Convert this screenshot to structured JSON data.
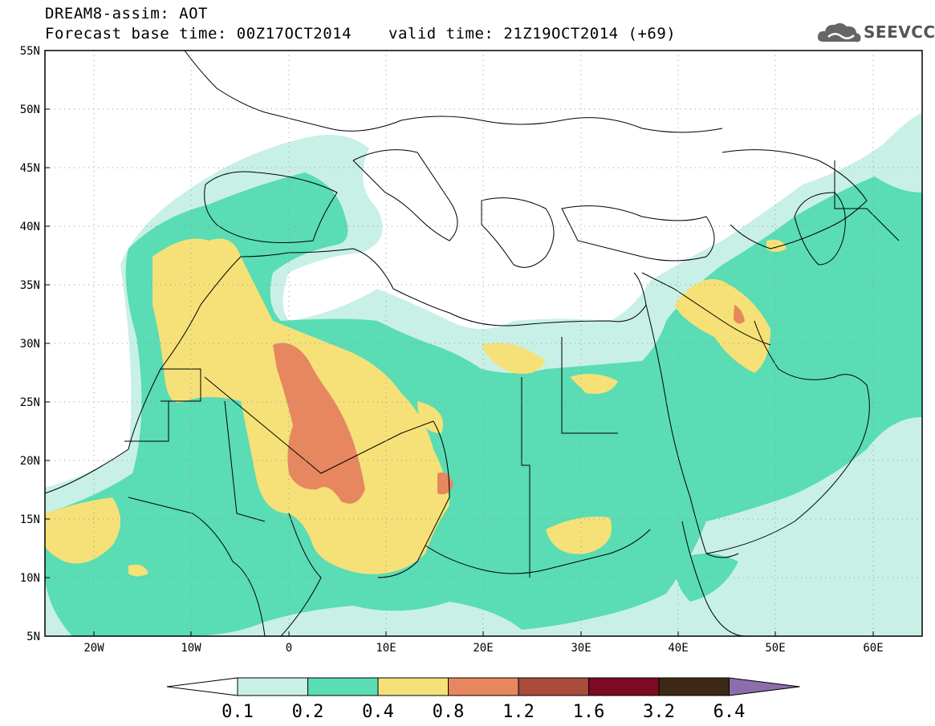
{
  "header": {
    "title_line1": "DREAM8-assim: AOT",
    "base_time": "Forecast base time: 00Z17OCT2014",
    "valid_time": "valid time: 21Z19OCT2014 (+69)"
  },
  "logo": {
    "text": "SEEVCCC",
    "icon": "cloud-logo-icon"
  },
  "axes": {
    "lat_labels": [
      "55N",
      "50N",
      "45N",
      "40N",
      "35N",
      "30N",
      "25N",
      "20N",
      "15N",
      "10N",
      "5N"
    ],
    "lon_labels": [
      "20W",
      "10W",
      "0",
      "10E",
      "20E",
      "30E",
      "40E",
      "50E",
      "60E"
    ]
  },
  "colorbar": {
    "labels": [
      "0.1",
      "0.2",
      "0.4",
      "0.8",
      "1.2",
      "1.6",
      "3.2",
      "6.4"
    ],
    "colors": [
      "#ffffff",
      "#c8f0e6",
      "#5adcb4",
      "#f5e178",
      "#e6875f",
      "#aa4b3c",
      "#7d0a23",
      "#3c2814",
      "#8c6eaa"
    ]
  }
}
